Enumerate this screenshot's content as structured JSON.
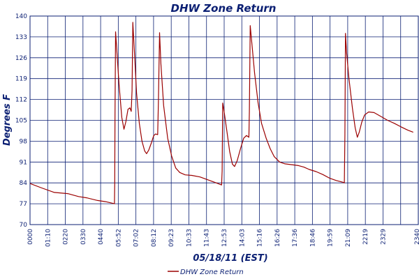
{
  "chart_data": {
    "type": "line",
    "title": "DHW Zone Return",
    "xlabel": "05/18/11 (EST)",
    "ylabel": "Degrees F",
    "ylim": [
      70,
      140
    ],
    "xlim": [
      "00:00",
      "23:59"
    ],
    "y_ticks": [
      "70",
      "77",
      "84",
      "91",
      "98",
      "105",
      "112",
      "119",
      "126",
      "133",
      "140"
    ],
    "x_ticks": [
      "0000",
      "01:10",
      "0220",
      "0330",
      "0440",
      "05:52",
      "07:02",
      "08:12",
      "09:23",
      "10:33",
      "11:43",
      "12:53",
      "14:03",
      "15:16",
      "16:26",
      "17:36",
      "18:46",
      "19:59",
      "21:09",
      "2219",
      "2329",
      "2340"
    ],
    "grid": true,
    "legend_position": "bottom-center",
    "series": [
      {
        "name": "DHW Zone Return",
        "color": "#9b0000",
        "points": [
          [
            "00:00",
            83.8
          ],
          [
            "00:40",
            82.4
          ],
          [
            "01:30",
            80.8
          ],
          [
            "02:20",
            80.4
          ],
          [
            "03:00",
            79.4
          ],
          [
            "03:30",
            79.0
          ],
          [
            "04:10",
            78.1
          ],
          [
            "04:40",
            77.7
          ],
          [
            "05:13",
            77.0
          ],
          [
            "05:14",
            84.0
          ],
          [
            "05:15",
            107.0
          ],
          [
            "05:17",
            134.7
          ],
          [
            "05:22",
            128.0
          ],
          [
            "05:30",
            117.0
          ],
          [
            "05:40",
            106.0
          ],
          [
            "05:48",
            102.0
          ],
          [
            "05:55",
            104.5
          ],
          [
            "06:03",
            108.7
          ],
          [
            "06:10",
            109.2
          ],
          [
            "06:15",
            108.0
          ],
          [
            "06:18",
            115.0
          ],
          [
            "06:21",
            137.9
          ],
          [
            "06:27",
            128.0
          ],
          [
            "06:35",
            114.0
          ],
          [
            "06:45",
            104.0
          ],
          [
            "06:55",
            98.0
          ],
          [
            "07:05",
            94.7
          ],
          [
            "07:12",
            93.8
          ],
          [
            "07:20",
            95.0
          ],
          [
            "07:30",
            97.5
          ],
          [
            "07:38",
            99.8
          ],
          [
            "07:45",
            100.4
          ],
          [
            "07:53",
            100.2
          ],
          [
            "07:56",
            112.0
          ],
          [
            "08:00",
            134.4
          ],
          [
            "08:05",
            124.0
          ],
          [
            "08:15",
            110.0
          ],
          [
            "08:30",
            99.0
          ],
          [
            "08:45",
            93.0
          ],
          [
            "09:00",
            89.0
          ],
          [
            "09:15",
            87.5
          ],
          [
            "09:35",
            86.7
          ],
          [
            "10:00",
            86.5
          ],
          [
            "10:30",
            86.0
          ],
          [
            "11:00",
            85.0
          ],
          [
            "11:30",
            84.0
          ],
          [
            "11:50",
            83.3
          ],
          [
            "11:52",
            88.0
          ],
          [
            "11:54",
            110.8
          ],
          [
            "12:00",
            107.5
          ],
          [
            "12:10",
            101.0
          ],
          [
            "12:20",
            94.5
          ],
          [
            "12:30",
            90.3
          ],
          [
            "12:38",
            89.5
          ],
          [
            "12:48",
            91.5
          ],
          [
            "13:00",
            95.5
          ],
          [
            "13:12",
            99.0
          ],
          [
            "13:22",
            99.9
          ],
          [
            "13:31",
            99.3
          ],
          [
            "13:33",
            108.0
          ],
          [
            "13:36",
            136.8
          ],
          [
            "13:42",
            131.0
          ],
          [
            "13:52",
            121.0
          ],
          [
            "14:05",
            111.0
          ],
          [
            "14:18",
            104.0
          ],
          [
            "14:35",
            99.0
          ],
          [
            "14:50",
            95.5
          ],
          [
            "15:05",
            92.8
          ],
          [
            "15:25",
            91.0
          ],
          [
            "15:45",
            90.4
          ],
          [
            "16:10",
            90.1
          ],
          [
            "16:35",
            89.8
          ],
          [
            "16:55",
            89.3
          ],
          [
            "17:15",
            88.5
          ],
          [
            "17:40",
            87.8
          ],
          [
            "18:05",
            86.8
          ],
          [
            "18:30",
            85.6
          ],
          [
            "18:55",
            84.8
          ],
          [
            "19:20",
            84.2
          ],
          [
            "19:25",
            84.0
          ],
          [
            "19:27",
            100.0
          ],
          [
            "19:29",
            134.2
          ],
          [
            "19:33",
            128.0
          ],
          [
            "19:42",
            119.0
          ],
          [
            "19:55",
            109.0
          ],
          [
            "20:05",
            102.5
          ],
          [
            "20:13",
            99.3
          ],
          [
            "20:20",
            101.0
          ],
          [
            "20:30",
            104.5
          ],
          [
            "20:40",
            106.8
          ],
          [
            "20:55",
            107.8
          ],
          [
            "21:15",
            107.6
          ],
          [
            "21:40",
            106.3
          ],
          [
            "22:05",
            105.0
          ],
          [
            "22:30",
            104.0
          ],
          [
            "22:55",
            102.8
          ],
          [
            "23:20",
            101.7
          ],
          [
            "23:40",
            101.0
          ]
        ]
      }
    ]
  }
}
